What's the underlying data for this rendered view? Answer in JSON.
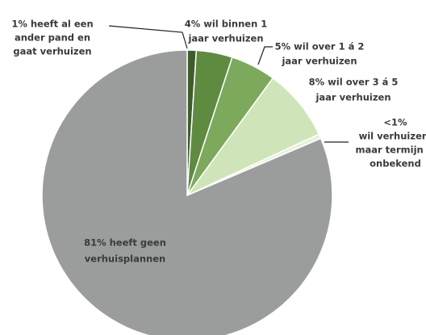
{
  "chart_data": {
    "type": "pie",
    "labels": [
      [
        "1% heeft al een",
        "ander pand en",
        "gaat verhuizen"
      ],
      [
        "4% wil binnen 1",
        "jaar verhuizen"
      ],
      [
        "5% wil over 1 á 2",
        "jaar verhuizen"
      ],
      [
        "8% wil over 3 á 5",
        "jaar verhuizen"
      ],
      [
        "<1%",
        "wil verhuizen,",
        "maar termijn is",
        "onbekend"
      ],
      [
        "81% heeft geen",
        "verhuisplannen"
      ]
    ],
    "values": [
      1,
      4,
      5,
      8,
      0.5,
      81
    ],
    "colors": [
      "#3f5c2c",
      "#5f8b41",
      "#7ca95b",
      "#d0e4ba",
      "#e8f0dc",
      "#9b9d9c"
    ]
  }
}
